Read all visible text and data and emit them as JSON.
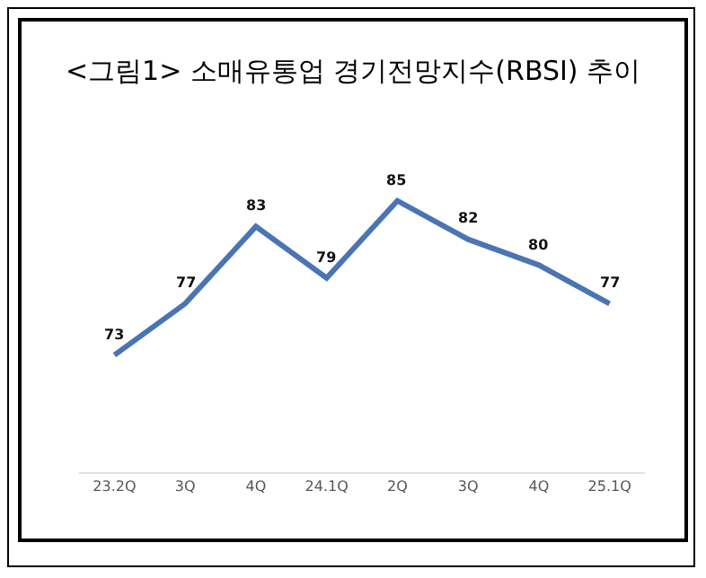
{
  "chart_data": {
    "type": "line",
    "title": "<그림1> 소매유통업 경기전망지수(RBSI) 추이",
    "categories": [
      "23.2Q",
      "3Q",
      "4Q",
      "24.1Q",
      "2Q",
      "3Q",
      "4Q",
      "25.1Q"
    ],
    "series": [
      {
        "color": "#4a74b4",
        "values": [
          73,
          77,
          83,
          79,
          85,
          82,
          80,
          77
        ]
      }
    ],
    "data_labels": true,
    "marker": "none",
    "line_style": "solid",
    "tick_labels": "x"
  }
}
